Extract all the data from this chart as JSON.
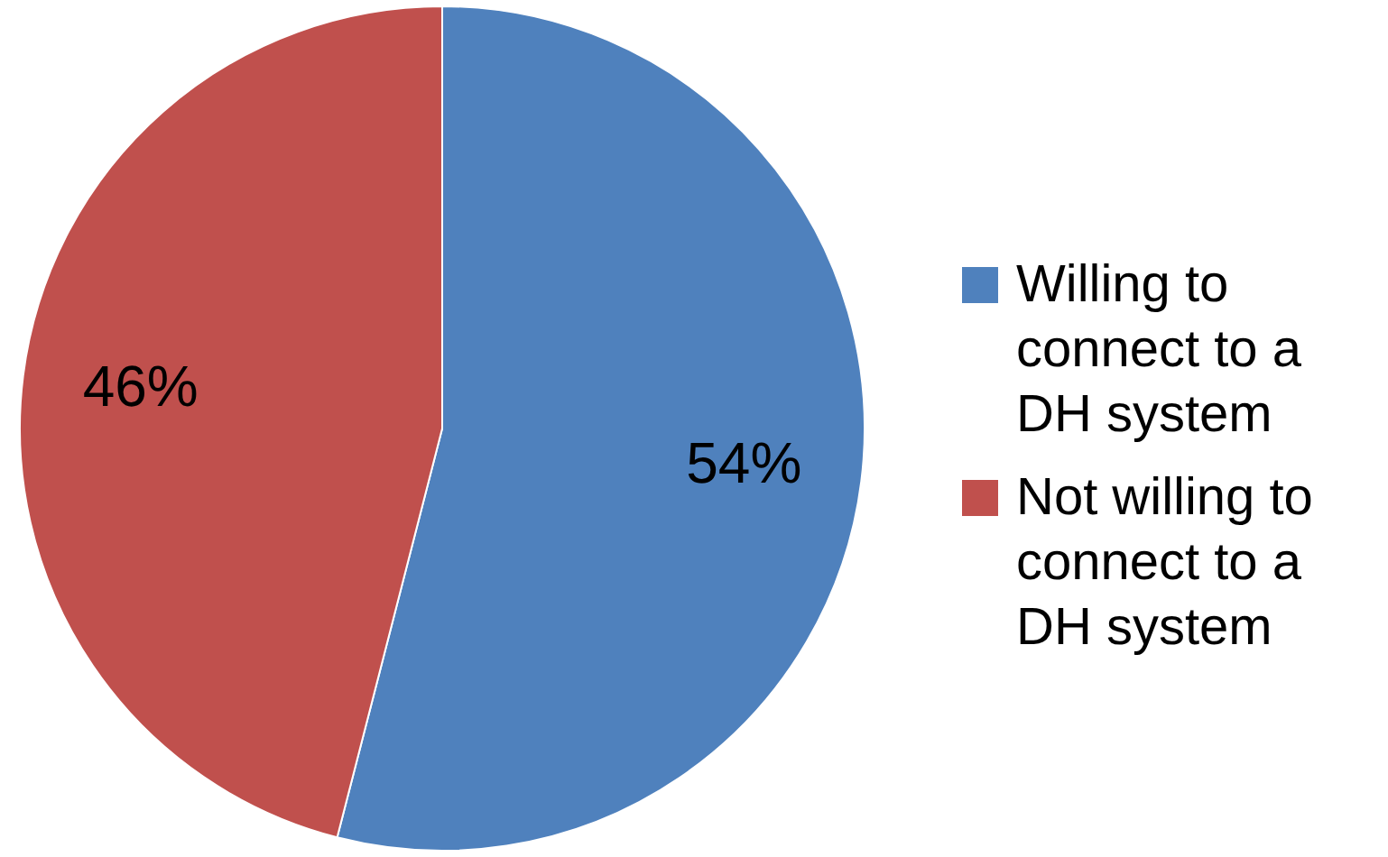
{
  "chart_data": {
    "type": "pie",
    "categories": [
      "Willing to connect to a DH system",
      "Not willing to connect to a DH system"
    ],
    "values": [
      54,
      46
    ],
    "colors": [
      "#4f81bd",
      "#c0504d"
    ],
    "value_labels": [
      "54%",
      "46%"
    ],
    "legend": "right"
  }
}
